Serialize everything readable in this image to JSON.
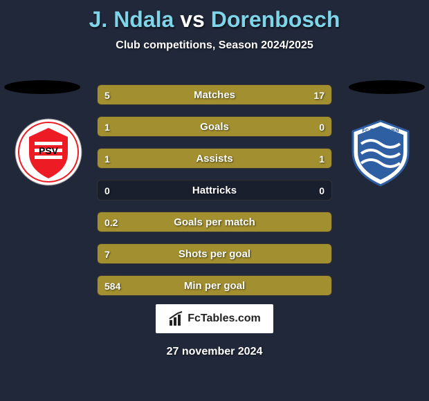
{
  "title": {
    "player1": "J. Ndala",
    "vs": "vs",
    "player2": "Dorenbosch",
    "player_color": "#7fd4e8",
    "vs_color": "#ffffff",
    "fontsize": 32
  },
  "subtitle": "Club competitions, Season 2024/2025",
  "background_color": "#20283a",
  "bar_fill_color": "#a28f2f",
  "bar_track_color": "#1a1f2e",
  "text_color": "#ffffff",
  "logos": {
    "left": {
      "name": "psv-logo",
      "primary": "#ed1c24",
      "secondary": "#ffffff"
    },
    "right": {
      "name": "fc-eindhoven-logo",
      "primary": "#2e5fa3",
      "secondary": "#ffffff"
    }
  },
  "rows": [
    {
      "label": "Matches",
      "left": "5",
      "right": "17",
      "left_pct": 23,
      "right_pct": 77
    },
    {
      "label": "Goals",
      "left": "1",
      "right": "0",
      "left_pct": 100,
      "right_pct": 0
    },
    {
      "label": "Assists",
      "left": "1",
      "right": "1",
      "left_pct": 50,
      "right_pct": 50
    },
    {
      "label": "Hattricks",
      "left": "0",
      "right": "0",
      "left_pct": 0,
      "right_pct": 0
    },
    {
      "label": "Goals per match",
      "left": "0.2",
      "right": "",
      "left_pct": 100,
      "right_pct": 0
    },
    {
      "label": "Shots per goal",
      "left": "7",
      "right": "",
      "left_pct": 100,
      "right_pct": 0
    },
    {
      "label": "Min per goal",
      "left": "584",
      "right": "",
      "left_pct": 100,
      "right_pct": 0
    }
  ],
  "brand": "FcTables.com",
  "date": "27 november 2024"
}
